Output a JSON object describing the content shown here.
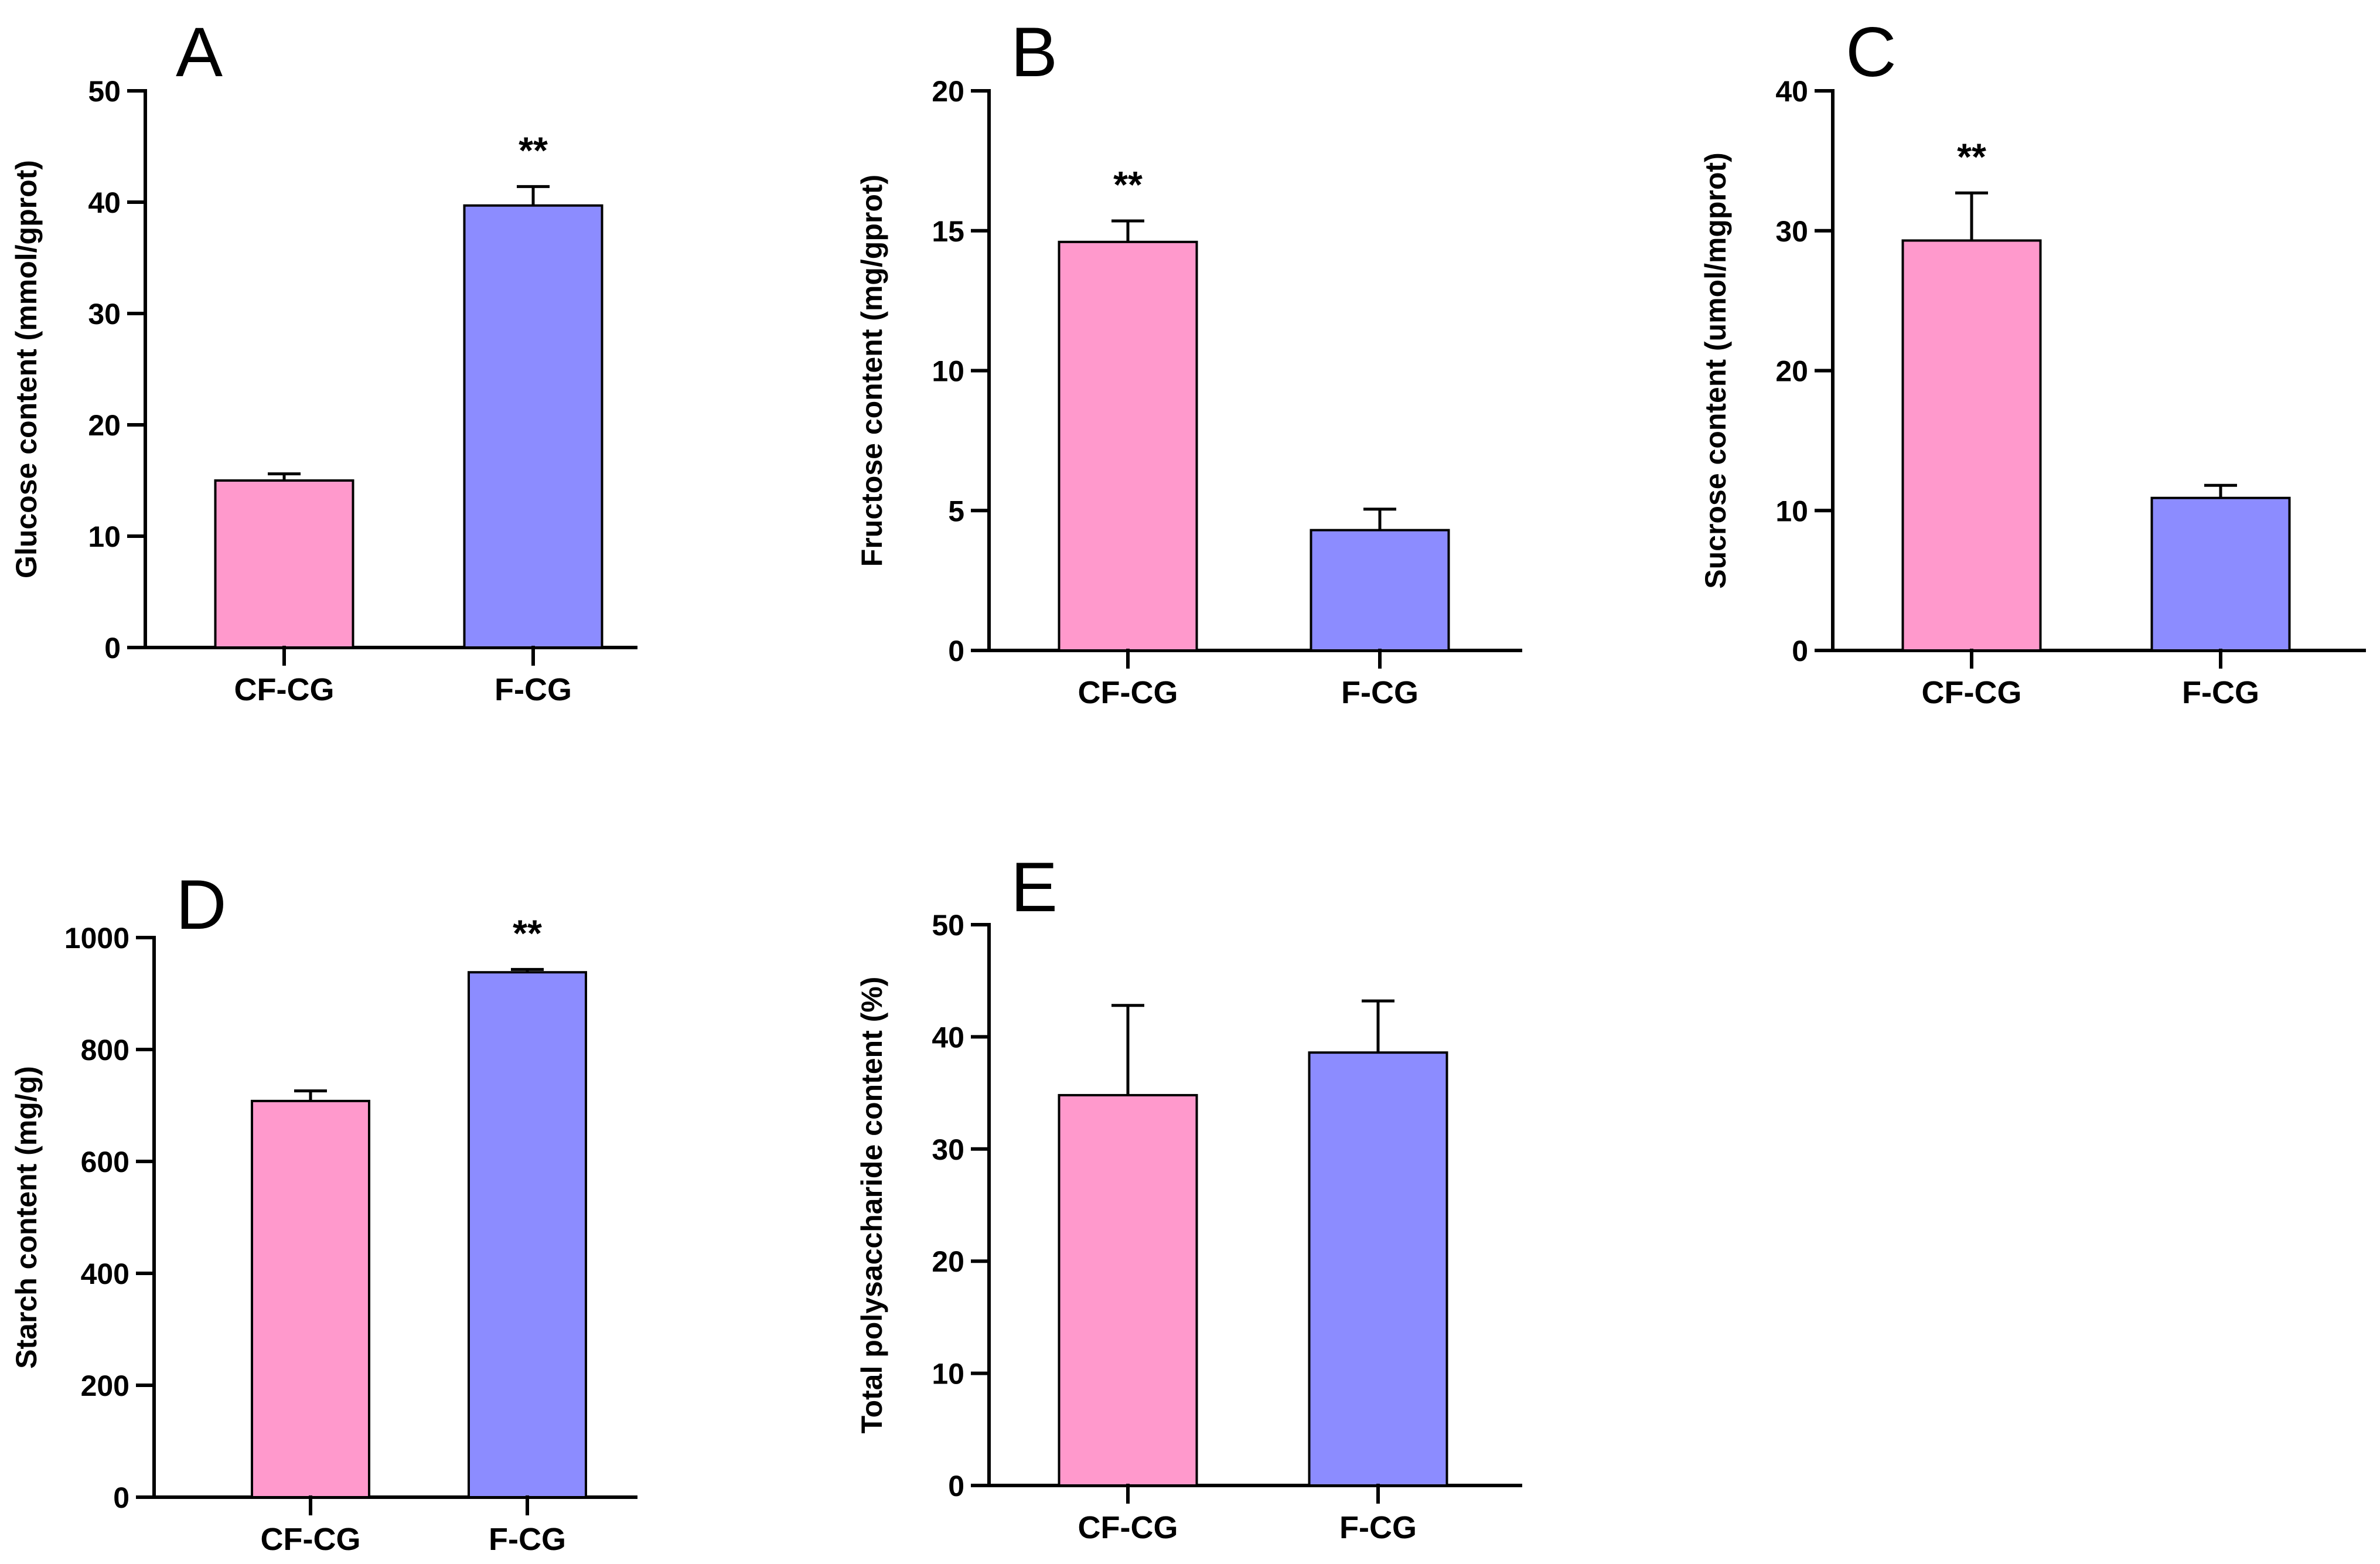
{
  "figure": {
    "colors": {
      "pink": "#FF99CC",
      "blue": "#8C8CFF",
      "axis": "#000000"
    }
  },
  "chart_data": [
    {
      "type": "bar",
      "panel": "A",
      "ylabel": "Glucose content (mmol/gprot)",
      "xlabel": "",
      "ylim": [
        0,
        50
      ],
      "yticks": [
        0,
        10,
        20,
        30,
        40,
        50
      ],
      "categories": [
        "CF-CG",
        "F-CG"
      ],
      "values": [
        15.0,
        39.7
      ],
      "errors": [
        0.6,
        1.7
      ],
      "significance": [
        "",
        "**"
      ]
    },
    {
      "type": "bar",
      "panel": "B",
      "ylabel": "Fructose content (mg/gprot)",
      "xlabel": "",
      "ylim": [
        0,
        20
      ],
      "yticks": [
        0,
        5,
        10,
        15,
        20
      ],
      "categories": [
        "CF-CG",
        "F-CG"
      ],
      "values": [
        14.6,
        4.3
      ],
      "errors": [
        0.75,
        0.75
      ],
      "significance": [
        "**",
        ""
      ]
    },
    {
      "type": "bar",
      "panel": "C",
      "ylabel": "Sucrose content  (umol/mgprot)",
      "xlabel": "",
      "ylim": [
        0,
        40
      ],
      "yticks": [
        0,
        10,
        20,
        30,
        40
      ],
      "categories": [
        "CF-CG",
        "F-CG"
      ],
      "values": [
        29.3,
        10.9
      ],
      "errors": [
        3.4,
        0.9
      ],
      "significance": [
        "**",
        ""
      ]
    },
    {
      "type": "bar",
      "panel": "D",
      "ylabel": "Starch content (mg/g)",
      "xlabel": "",
      "ylim": [
        0,
        1000
      ],
      "yticks": [
        0,
        200,
        400,
        600,
        800,
        1000
      ],
      "categories": [
        "CF-CG",
        "F-CG"
      ],
      "values": [
        708,
        938
      ],
      "errors": [
        18,
        5
      ],
      "significance": [
        "",
        "**"
      ]
    },
    {
      "type": "bar",
      "panel": "E",
      "ylabel": "Total polysaccharide content (%)",
      "xlabel": "",
      "ylim": [
        0,
        50
      ],
      "yticks": [
        0,
        10,
        20,
        30,
        40,
        50
      ],
      "categories": [
        "CF-CG",
        "F-CG"
      ],
      "values": [
        34.8,
        38.6
      ],
      "errors": [
        8.0,
        4.6
      ],
      "significance": [
        "",
        ""
      ]
    }
  ]
}
